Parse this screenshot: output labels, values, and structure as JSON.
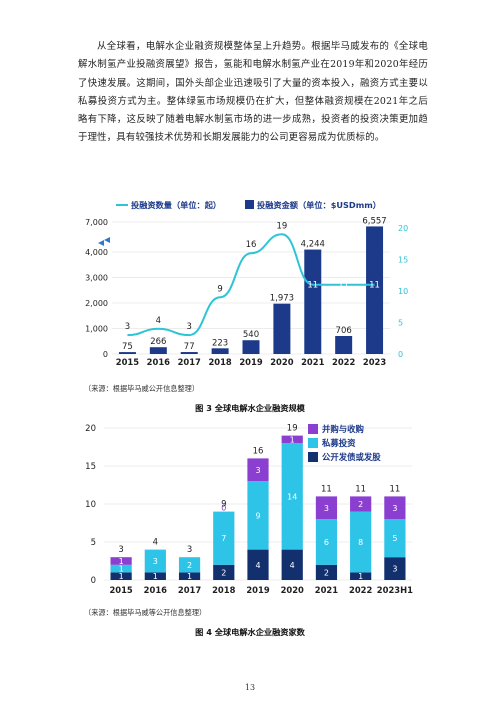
{
  "paragraph": "从全球看，电解水企业融资规模整体呈上升趋势。根据毕马威发布的《全球电解水制氢产业投融资展望》报告，氢能和电解水制氢产业在2019年和2020年经历了快速发展。这期间，国外头部企业迅速吸引了大量的资本投入，融资方式主要以私募投资方式为主。整体绿氢市场规模仍在扩大，但整体融资规模在2021年之后略有下降，这反映了随着电解水制氢市场的进一步成熟，投资者的投资决策更加趋于理性，具有较强技术优势和长期发展能力的公司更容易成为优质标的。",
  "figure3": {
    "legend_count": "投融资数量（单位：起）",
    "legend_amount": "投融资金额（单位：$USDmm）",
    "source": "（来源：根据毕马威公开信息整理）",
    "caption": "图 3 全球电解水企业融资规模",
    "colors": {
      "line": "#2ec4d6",
      "bar": "#1d3a8a",
      "text": "#1d3a8a"
    }
  },
  "figure4": {
    "legend_items": [
      "并购与收购",
      "私募投资",
      "公开发债或发股"
    ],
    "source": "（来源：根据毕马威等公开信息整理）",
    "caption": "图 4 全球电解水企业融资家数",
    "colors": {
      "ma": "#8a3fd0",
      "pe": "#2ec4e8",
      "public": "#12306e"
    }
  },
  "page_number": "13",
  "chart_data": [
    {
      "type": "bar",
      "categories": [
        "2015",
        "2016",
        "2017",
        "2018",
        "2019",
        "2020",
        "2021",
        "2022",
        "2023"
      ],
      "series": [
        {
          "name": "投融资金额（单位：$USDmm）",
          "values": [
            75,
            266,
            77,
            223,
            540,
            1973,
            4244,
            706,
            6557
          ],
          "axis": "left"
        },
        {
          "name": "投融资数量（单位：起）",
          "type": "line",
          "values": [
            3,
            4,
            3,
            9,
            16,
            19,
            11,
            11,
            11
          ],
          "axis": "right"
        }
      ],
      "y_left_ticks": [
        "0",
        "1,000",
        "2,000",
        "3,000",
        "4,000",
        "7,000"
      ],
      "y_left_axis_break": true,
      "y_right_ticks": [
        "0",
        "5",
        "10",
        "15",
        "20"
      ],
      "ylim_right": [
        0,
        20
      ],
      "value_labels": [
        "75",
        "266",
        "77",
        "223",
        "540",
        "1,973",
        "4,244",
        "706",
        "6,557"
      ],
      "legend_position": "top",
      "grid": true
    },
    {
      "type": "bar",
      "stacked": true,
      "categories": [
        "2015",
        "2016",
        "2017",
        "2018",
        "2019",
        "2020",
        "2021",
        "2022",
        "2023H1"
      ],
      "series": [
        {
          "name": "公开发债或发股",
          "values": [
            1,
            1,
            1,
            2,
            4,
            4,
            2,
            1,
            3
          ]
        },
        {
          "name": "私募投资",
          "values": [
            1,
            3,
            2,
            7,
            9,
            14,
            6,
            8,
            5
          ]
        },
        {
          "name": "并购与收购",
          "values": [
            1,
            0,
            0,
            0,
            3,
            1,
            3,
            2,
            3
          ]
        }
      ],
      "totals": [
        3,
        4,
        3,
        9,
        16,
        19,
        11,
        11,
        11
      ],
      "ylim": [
        0,
        20
      ],
      "y_ticks": [
        "0",
        "5",
        "10",
        "15",
        "20"
      ],
      "legend_position": "top-right",
      "grid": true
    }
  ]
}
